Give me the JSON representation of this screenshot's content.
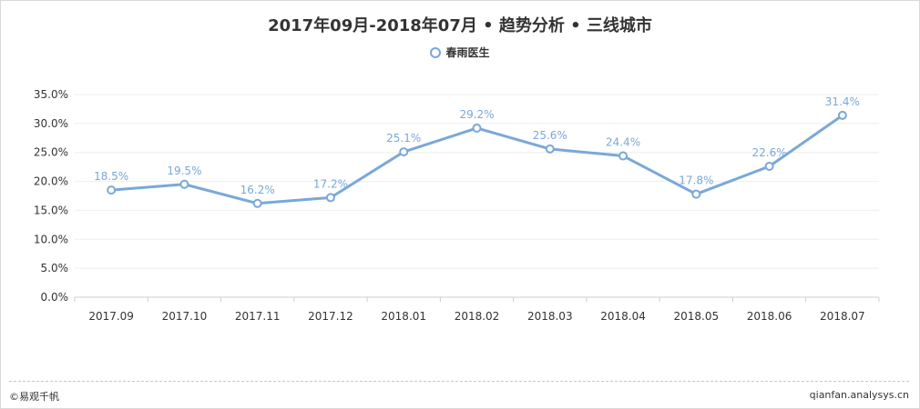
{
  "title": "2017年09月-2018年07月 • 趋势分析 • 三线城市",
  "legend": {
    "label": "春雨医生"
  },
  "footer": {
    "left": "©易观千帆",
    "right": "qianfan.analysys.cn"
  },
  "colors": {
    "series": "#7aa8d8",
    "label": "#7aa8d8",
    "axis_text": "#333333",
    "grid": "#eeeeee"
  },
  "chart_data": {
    "type": "line",
    "title": "2017年09月-2018年07月 • 趋势分析 • 三线城市",
    "categories": [
      "2017.09",
      "2017.10",
      "2017.11",
      "2017.12",
      "2018.01",
      "2018.02",
      "2018.03",
      "2018.04",
      "2018.05",
      "2018.06",
      "2018.07"
    ],
    "series": [
      {
        "name": "春雨医生",
        "values": [
          18.5,
          19.5,
          16.2,
          17.2,
          25.1,
          29.2,
          25.6,
          24.4,
          17.8,
          22.6,
          31.4
        ]
      }
    ],
    "value_labels": [
      "18.5%",
      "19.5%",
      "16.2%",
      "17.2%",
      "25.1%",
      "29.2%",
      "25.6%",
      "24.4%",
      "17.8%",
      "22.6%",
      "31.4%"
    ],
    "y_ticks": [
      "0.0%",
      "5.0%",
      "10.0%",
      "15.0%",
      "20.0%",
      "25.0%",
      "30.0%",
      "35.0%"
    ],
    "ylim": [
      0,
      35
    ],
    "grid": true,
    "legend_position": "top-center"
  }
}
